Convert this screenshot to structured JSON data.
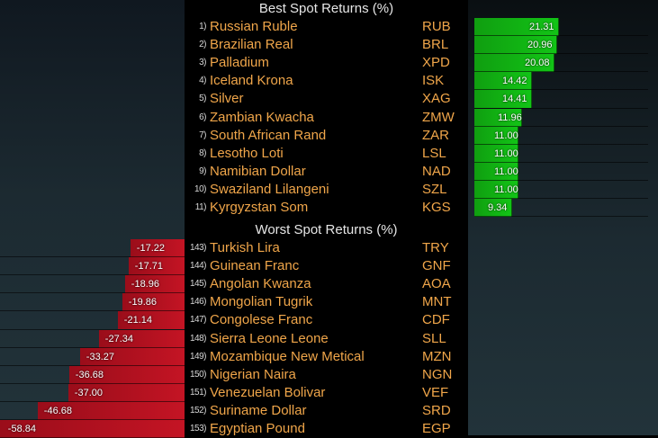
{
  "best": {
    "title": "Best Spot Returns (%)",
    "rows": [
      {
        "rank": "1)",
        "name": "Russian Ruble",
        "ticker": "RUB",
        "value": "21.31"
      },
      {
        "rank": "2)",
        "name": "Brazilian Real",
        "ticker": "BRL",
        "value": "20.96"
      },
      {
        "rank": "3)",
        "name": "Palladium",
        "ticker": "XPD",
        "value": "20.08"
      },
      {
        "rank": "4)",
        "name": "Iceland Krona",
        "ticker": "ISK",
        "value": "14.42"
      },
      {
        "rank": "5)",
        "name": "Silver",
        "ticker": "XAG",
        "value": "14.41"
      },
      {
        "rank": "6)",
        "name": "Zambian Kwacha",
        "ticker": "ZMW",
        "value": "11.96"
      },
      {
        "rank": "7)",
        "name": "South African Rand",
        "ticker": "ZAR",
        "value": "11.00"
      },
      {
        "rank": "8)",
        "name": "Lesotho Loti",
        "ticker": "LSL",
        "value": "11.00"
      },
      {
        "rank": "9)",
        "name": "Namibian Dollar",
        "ticker": "NAD",
        "value": "11.00"
      },
      {
        "rank": "10)",
        "name": "Swaziland Lilangeni",
        "ticker": "SZL",
        "value": "11.00"
      },
      {
        "rank": "11)",
        "name": "Kyrgyzstan Som",
        "ticker": "KGS",
        "value": "9.34"
      }
    ]
  },
  "worst": {
    "title": "Worst Spot Returns (%)",
    "rows": [
      {
        "rank": "143)",
        "name": "Turkish Lira",
        "ticker": "TRY",
        "value": "-17.22"
      },
      {
        "rank": "144)",
        "name": "Guinean Franc",
        "ticker": "GNF",
        "value": "-17.71"
      },
      {
        "rank": "145)",
        "name": "Angolan Kwanza",
        "ticker": "AOA",
        "value": "-18.96"
      },
      {
        "rank": "146)",
        "name": "Mongolian Tugrik",
        "ticker": "MNT",
        "value": "-19.86"
      },
      {
        "rank": "147)",
        "name": "Congolese Franc",
        "ticker": "CDF",
        "value": "-21.14"
      },
      {
        "rank": "148)",
        "name": "Sierra Leone Leone",
        "ticker": "SLL",
        "value": "-27.34"
      },
      {
        "rank": "149)",
        "name": "Mozambique New Metical",
        "ticker": "MZN",
        "value": "-33.27"
      },
      {
        "rank": "150)",
        "name": "Nigerian Naira",
        "ticker": "NGN",
        "value": "-36.68"
      },
      {
        "rank": "151)",
        "name": "Venezuelan Bolivar",
        "ticker": "VEF",
        "value": "-37.00"
      },
      {
        "rank": "152)",
        "name": "Suriname Dollar",
        "ticker": "SRD",
        "value": "-46.68"
      },
      {
        "rank": "153)",
        "name": "Egyptian Pound",
        "ticker": "EGP",
        "value": "-58.84"
      }
    ]
  },
  "colors": {
    "label": "#f0a64a",
    "positive_bar": "#12c416",
    "negative_bar": "#c41424",
    "title": "#e6e6e6"
  }
}
